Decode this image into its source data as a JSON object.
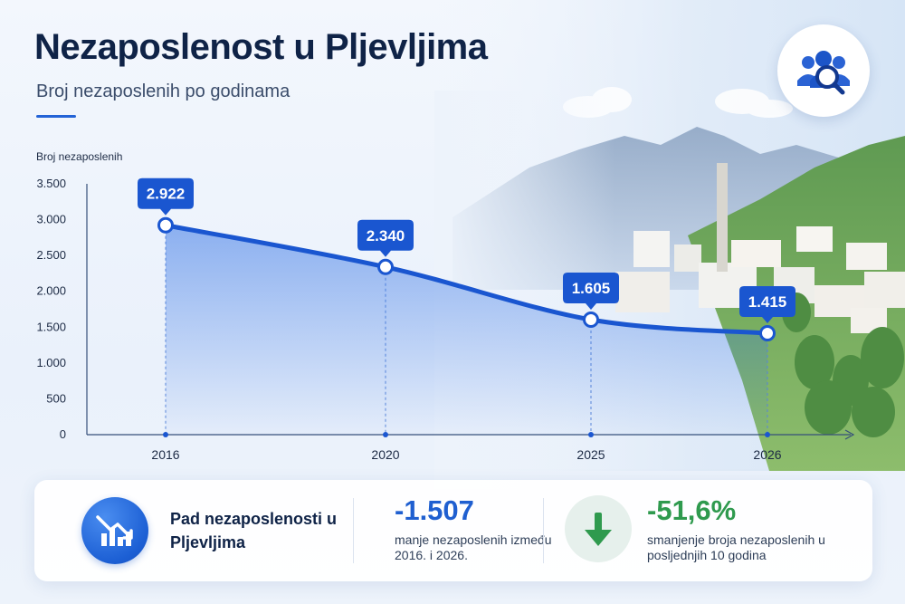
{
  "header": {
    "title": "Nezaposlenost u Pljevljima",
    "subtitle": "Broj nezaposlenih po godinama",
    "badge_icon": "people-search-icon"
  },
  "chart_data": {
    "type": "area",
    "ylabel": "Broj nezaposlenih",
    "xlabel": "",
    "categories": [
      "2016",
      "2020",
      "2025",
      "2026"
    ],
    "series": [
      {
        "values": [
          2922,
          2340,
          1605,
          1415
        ]
      }
    ],
    "data_labels": [
      "2.922",
      "2.340",
      "1.605",
      "1.415"
    ],
    "yticks": [
      0,
      500,
      1000,
      1500,
      2000,
      2500,
      3000,
      3500
    ],
    "ytick_labels": [
      "0",
      "500",
      "1.000",
      "1.500",
      "2.000",
      "2.500",
      "3.000",
      "3.500"
    ],
    "ylim": [
      0,
      3500
    ],
    "grid": false,
    "legend": "none",
    "line_color": "#1a56d0",
    "fill_color": "#3b78e6",
    "label_color": "#1a56d0"
  },
  "summary": {
    "icon": "chart-down-icon",
    "title": "Pad nezaposlenosti u Pljevljima",
    "stat1": {
      "value": "-1.507",
      "description": "manje nezaposlenih između 2016. i 2026.",
      "color": "#1f5fd0"
    },
    "stat2": {
      "icon": "arrow-down-icon",
      "value": "-51,6%",
      "description": "smanjenje broja nezaposlenih u posljednjih 10 godina",
      "color": "#2f9a4e"
    }
  }
}
